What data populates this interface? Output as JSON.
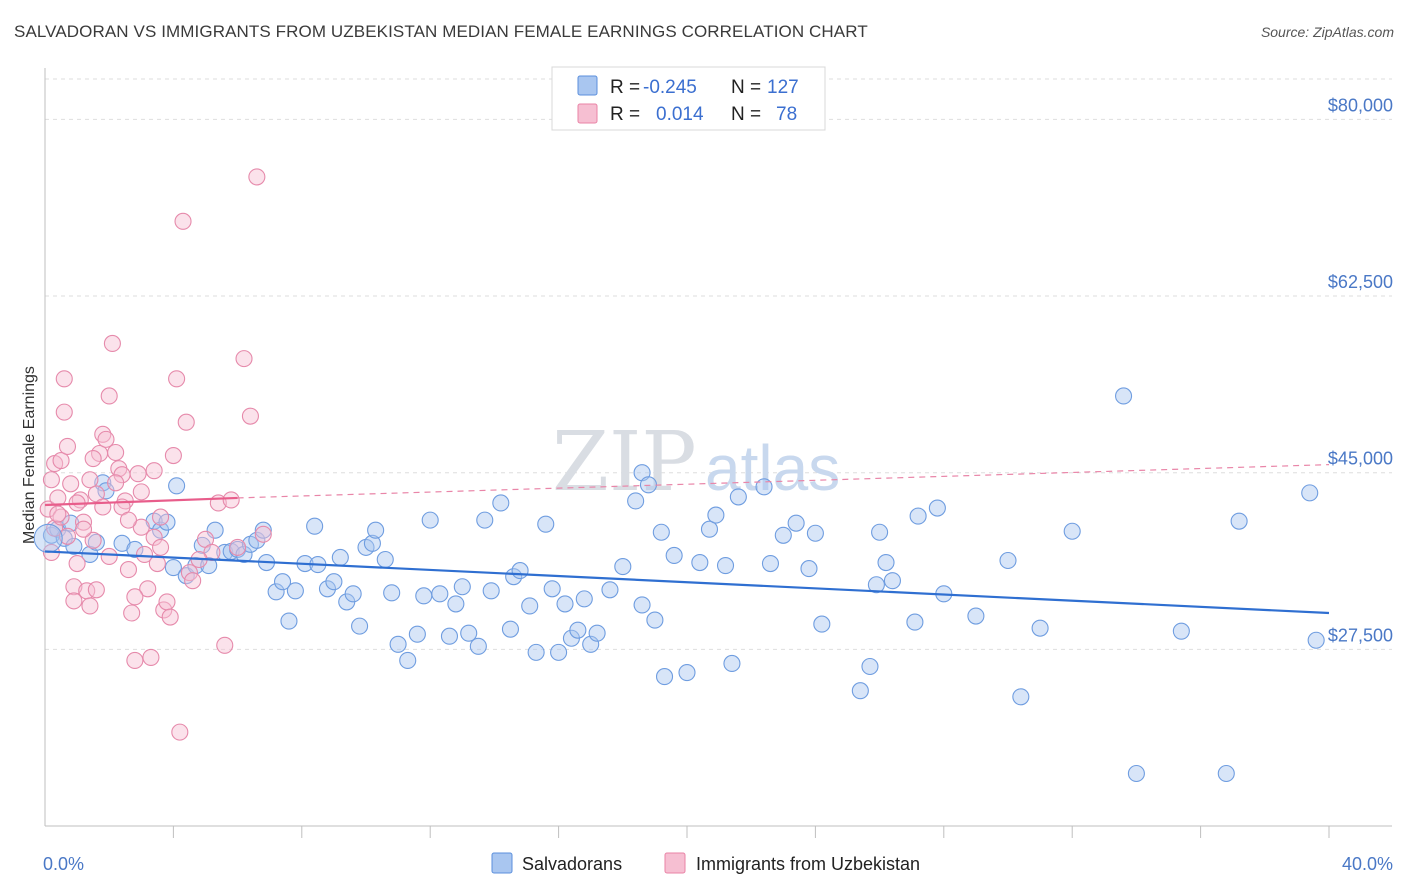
{
  "title": "SALVADORAN VS IMMIGRANTS FROM UZBEKISTAN MEDIAN FEMALE EARNINGS CORRELATION CHART",
  "source": "Source: ZipAtlas.com",
  "watermark": {
    "zip": "ZIP",
    "atlas": "atlas"
  },
  "colors": {
    "blue": "#5b8fdc",
    "blue_fill": "#a9c6f0",
    "blue_line": "#2f6fd1",
    "pink": "#e983a6",
    "pink_fill": "#f6bfd2",
    "pink_line": "#e85d8b",
    "tick_text": "#4a78c6"
  },
  "legend": {
    "rows": [
      {
        "r_label": "R = ",
        "r_value": "-0.245",
        "n_label": "N = ",
        "n_value": "127"
      },
      {
        "r_label": "R = ",
        "r_value": "0.014",
        "n_label": "N = ",
        "n_value": "78"
      }
    ]
  },
  "chart_data": {
    "type": "scatter",
    "title": "SALVADORAN VS IMMIGRANTS FROM UZBEKISTAN MEDIAN FEMALE EARNINGS CORRELATION CHART",
    "xlabel": "",
    "ylabel": "Median Female Earnings",
    "xlim": [
      0,
      40
    ],
    "ylim": [
      10000,
      84000
    ],
    "x_tick_labels": [
      "0.0%",
      "40.0%"
    ],
    "y_ticks": [
      27500,
      45000,
      62500,
      80000
    ],
    "y_tick_labels": [
      "$27,500",
      "$45,000",
      "$62,500",
      "$80,000"
    ],
    "grid": true,
    "legend_position": "top-center",
    "series": [
      {
        "name": "Salvadorans",
        "trend": {
          "x": [
            0,
            40
          ],
          "y": [
            37200,
            31100
          ]
        },
        "points": [
          [
            0.2,
            38800
          ],
          [
            0.4,
            39400
          ],
          [
            0.6,
            38500
          ],
          [
            0.8,
            40000
          ],
          [
            0.9,
            37700
          ],
          [
            1.4,
            36900
          ],
          [
            1.6,
            38100
          ],
          [
            1.8,
            44000
          ],
          [
            1.9,
            43200
          ],
          [
            2.4,
            38000
          ],
          [
            2.8,
            37400
          ],
          [
            3.4,
            40200
          ],
          [
            3.6,
            39300
          ],
          [
            3.8,
            40100
          ],
          [
            4.0,
            35600
          ],
          [
            4.1,
            43700
          ],
          [
            4.4,
            34800
          ],
          [
            4.7,
            35800
          ],
          [
            4.9,
            37800
          ],
          [
            5.1,
            35800
          ],
          [
            5.3,
            39300
          ],
          [
            5.6,
            37100
          ],
          [
            5.8,
            37200
          ],
          [
            6.0,
            37400
          ],
          [
            6.2,
            36900
          ],
          [
            6.4,
            37900
          ],
          [
            6.6,
            38300
          ],
          [
            6.8,
            39300
          ],
          [
            6.9,
            36100
          ],
          [
            7.2,
            33200
          ],
          [
            7.4,
            34200
          ],
          [
            7.6,
            30300
          ],
          [
            7.8,
            33300
          ],
          [
            8.1,
            36000
          ],
          [
            8.4,
            39700
          ],
          [
            8.5,
            35900
          ],
          [
            8.8,
            33500
          ],
          [
            9.0,
            34200
          ],
          [
            9.2,
            36600
          ],
          [
            9.4,
            32200
          ],
          [
            9.6,
            33000
          ],
          [
            9.8,
            29800
          ],
          [
            10.0,
            37600
          ],
          [
            10.2,
            38000
          ],
          [
            10.3,
            39300
          ],
          [
            10.6,
            36400
          ],
          [
            10.8,
            33100
          ],
          [
            11.0,
            28000
          ],
          [
            11.3,
            26400
          ],
          [
            11.6,
            29000
          ],
          [
            11.8,
            32800
          ],
          [
            12.0,
            40300
          ],
          [
            12.3,
            33000
          ],
          [
            12.6,
            28800
          ],
          [
            12.8,
            32000
          ],
          [
            13.0,
            33700
          ],
          [
            13.2,
            29100
          ],
          [
            13.5,
            27800
          ],
          [
            13.7,
            40300
          ],
          [
            13.9,
            33300
          ],
          [
            14.2,
            42000
          ],
          [
            14.5,
            29500
          ],
          [
            14.6,
            34700
          ],
          [
            14.8,
            35300
          ],
          [
            15.1,
            31800
          ],
          [
            15.3,
            27200
          ],
          [
            15.6,
            39900
          ],
          [
            15.8,
            33500
          ],
          [
            16.0,
            27200
          ],
          [
            16.2,
            32000
          ],
          [
            16.4,
            28600
          ],
          [
            16.6,
            29400
          ],
          [
            16.8,
            32500
          ],
          [
            17.0,
            28000
          ],
          [
            17.2,
            29100
          ],
          [
            17.6,
            33400
          ],
          [
            18.0,
            35700
          ],
          [
            18.4,
            42200
          ],
          [
            18.6,
            31900
          ],
          [
            18.6,
            45000
          ],
          [
            18.8,
            43800
          ],
          [
            19.0,
            30400
          ],
          [
            19.2,
            39100
          ],
          [
            19.3,
            24800
          ],
          [
            19.6,
            36800
          ],
          [
            20.0,
            25200
          ],
          [
            20.4,
            36100
          ],
          [
            20.7,
            39400
          ],
          [
            20.9,
            40800
          ],
          [
            21.2,
            35800
          ],
          [
            21.4,
            26100
          ],
          [
            21.6,
            42600
          ],
          [
            22.4,
            43600
          ],
          [
            22.6,
            36000
          ],
          [
            23.0,
            38800
          ],
          [
            23.4,
            40000
          ],
          [
            23.8,
            35500
          ],
          [
            24.0,
            39000
          ],
          [
            24.2,
            30000
          ],
          [
            25.4,
            23400
          ],
          [
            25.7,
            25800
          ],
          [
            25.9,
            33900
          ],
          [
            26.0,
            39100
          ],
          [
            26.2,
            36100
          ],
          [
            26.4,
            34300
          ],
          [
            27.1,
            30200
          ],
          [
            27.2,
            40700
          ],
          [
            27.8,
            41500
          ],
          [
            28.0,
            33000
          ],
          [
            29.0,
            30800
          ],
          [
            30.0,
            36300
          ],
          [
            30.4,
            22800
          ],
          [
            31.0,
            29600
          ],
          [
            32.0,
            39200
          ],
          [
            33.6,
            52600
          ],
          [
            34.0,
            15200
          ],
          [
            35.4,
            29300
          ],
          [
            36.8,
            15200
          ],
          [
            37.2,
            40200
          ],
          [
            39.6,
            28400
          ],
          [
            39.4,
            43000
          ]
        ]
      },
      {
        "name": "Immigrants from Uzbekistan",
        "trend": {
          "x": [
            0,
            6
          ],
          "y": [
            41800,
            42500
          ],
          "x_dashed": [
            6,
            40
          ],
          "y_dashed": [
            42500,
            45800
          ]
        },
        "points": [
          [
            0.1,
            41400
          ],
          [
            0.2,
            44300
          ],
          [
            0.3,
            45900
          ],
          [
            0.3,
            39500
          ],
          [
            0.4,
            42500
          ],
          [
            0.5,
            40600
          ],
          [
            0.5,
            46200
          ],
          [
            0.6,
            51000
          ],
          [
            0.7,
            47600
          ],
          [
            0.6,
            54300
          ],
          [
            0.8,
            43900
          ],
          [
            0.9,
            33700
          ],
          [
            1.0,
            36000
          ],
          [
            1.1,
            42300
          ],
          [
            1.2,
            40100
          ],
          [
            1.3,
            33300
          ],
          [
            1.4,
            44300
          ],
          [
            1.5,
            38300
          ],
          [
            1.6,
            42900
          ],
          [
            1.7,
            46900
          ],
          [
            1.8,
            48800
          ],
          [
            1.9,
            48300
          ],
          [
            2.0,
            52600
          ],
          [
            2.1,
            57800
          ],
          [
            2.2,
            47000
          ],
          [
            2.3,
            45400
          ],
          [
            2.4,
            44800
          ],
          [
            2.5,
            42200
          ],
          [
            2.6,
            35400
          ],
          [
            2.7,
            31100
          ],
          [
            2.8,
            26400
          ],
          [
            2.9,
            44900
          ],
          [
            3.0,
            43100
          ],
          [
            3.1,
            36900
          ],
          [
            3.2,
            33500
          ],
          [
            3.3,
            26700
          ],
          [
            3.4,
            38600
          ],
          [
            3.5,
            36000
          ],
          [
            3.6,
            37600
          ],
          [
            3.7,
            31400
          ],
          [
            3.8,
            32200
          ],
          [
            3.9,
            30700
          ],
          [
            4.0,
            46700
          ],
          [
            4.1,
            54300
          ],
          [
            4.2,
            19300
          ],
          [
            4.3,
            69900
          ],
          [
            4.4,
            50000
          ],
          [
            4.5,
            35100
          ],
          [
            4.6,
            34300
          ],
          [
            5.0,
            38400
          ],
          [
            5.2,
            37100
          ],
          [
            5.4,
            42000
          ],
          [
            5.6,
            27900
          ],
          [
            5.8,
            42300
          ],
          [
            6.0,
            37600
          ],
          [
            6.2,
            56300
          ],
          [
            6.4,
            50600
          ],
          [
            6.6,
            74300
          ],
          [
            6.8,
            38900
          ],
          [
            1.0,
            42000
          ],
          [
            1.5,
            46400
          ],
          [
            2.0,
            36700
          ],
          [
            2.4,
            41600
          ],
          [
            0.9,
            32300
          ],
          [
            1.6,
            33400
          ],
          [
            2.8,
            32700
          ],
          [
            3.4,
            45200
          ],
          [
            0.4,
            40900
          ],
          [
            1.2,
            39400
          ],
          [
            2.2,
            44000
          ],
          [
            3.0,
            39600
          ],
          [
            0.7,
            38700
          ],
          [
            1.8,
            41600
          ],
          [
            4.8,
            36400
          ],
          [
            2.6,
            40300
          ],
          [
            1.4,
            31800
          ],
          [
            0.2,
            37100
          ],
          [
            3.6,
            40600
          ]
        ]
      }
    ]
  },
  "bottom_legend": [
    "Salvadorans",
    "Immigrants from Uzbekistan"
  ]
}
